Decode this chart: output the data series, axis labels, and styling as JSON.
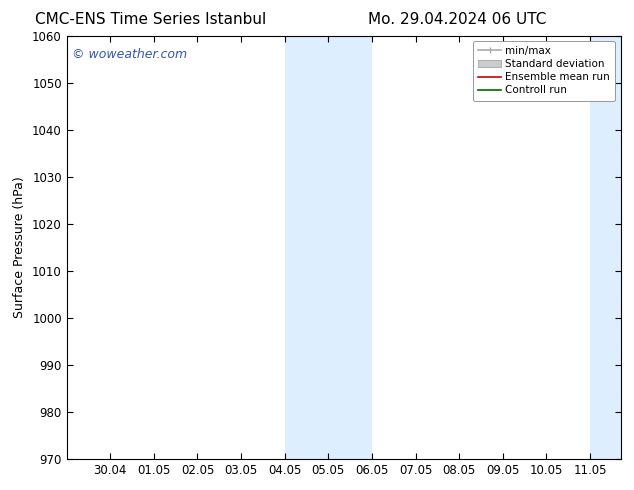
{
  "title_left": "CMC-ENS Time Series Istanbul",
  "title_right": "Mo. 29.04.2024 06 UTC",
  "ylabel": "Surface Pressure (hPa)",
  "ylim": [
    970,
    1060
  ],
  "yticks": [
    970,
    980,
    990,
    1000,
    1010,
    1020,
    1030,
    1040,
    1050,
    1060
  ],
  "xtick_labels": [
    "30.04",
    "01.05",
    "02.05",
    "03.05",
    "04.05",
    "05.05",
    "06.05",
    "07.05",
    "08.05",
    "09.05",
    "10.05",
    "11.05"
  ],
  "xtick_positions": [
    1,
    2,
    3,
    4,
    5,
    6,
    7,
    8,
    9,
    10,
    11,
    12
  ],
  "xlim": [
    0.0,
    12.7
  ],
  "shaded_regions": [
    {
      "start": 5.0,
      "end": 7.0,
      "color": "#ddeeff"
    },
    {
      "start": 12.0,
      "end": 12.7,
      "color": "#ddeeff"
    }
  ],
  "watermark_text": "© woweather.com",
  "watermark_color": "#3355bb",
  "background_color": "#ffffff",
  "legend_entries": [
    {
      "label": "min/max",
      "color": "#aaaaaa",
      "lw": 1.2
    },
    {
      "label": "Standard deviation",
      "color": "#cccccc",
      "lw": 6
    },
    {
      "label": "Ensemble mean run",
      "color": "#cc0000",
      "lw": 1.2
    },
    {
      "label": "Controll run",
      "color": "#006600",
      "lw": 1.2
    }
  ],
  "title_fontsize": 11,
  "axis_label_fontsize": 9,
  "tick_fontsize": 8.5,
  "legend_fontsize": 7.5
}
